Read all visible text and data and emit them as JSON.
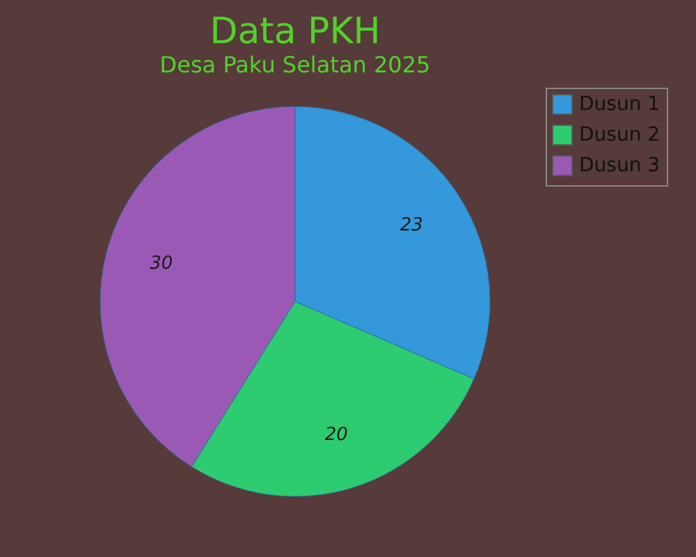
{
  "chart_data": {
    "type": "pie",
    "title": "Data PKH",
    "subtitle": "Desa Paku Selatan 2025",
    "categories": [
      "Dusun 1",
      "Dusun 2",
      "Dusun 3"
    ],
    "values": [
      23,
      20,
      30
    ],
    "colors": [
      "#3498db",
      "#2ecc71",
      "#9b59b6"
    ],
    "data_labels": true,
    "legend": "right"
  }
}
